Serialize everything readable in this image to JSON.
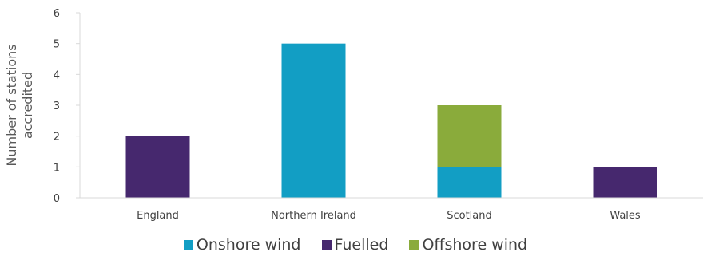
{
  "chart_data": {
    "type": "bar",
    "stacked": true,
    "title": "",
    "xlabel": "",
    "ylabel": "Number of stations accredited",
    "ylim": [
      0,
      6
    ],
    "yticks": [
      0,
      1,
      2,
      3,
      4,
      5,
      6
    ],
    "grid": false,
    "legend_position": "bottom",
    "categories": [
      "England",
      "Northern Ireland",
      "Scotland",
      "Wales"
    ],
    "series": [
      {
        "name": "Onshore wind",
        "color": "#129ec4",
        "values": [
          0,
          5,
          1,
          0
        ]
      },
      {
        "name": "Fuelled",
        "color": "#46286e",
        "values": [
          2,
          0,
          0,
          1
        ]
      },
      {
        "name": "Offshore wind",
        "color": "#8aab3b",
        "values": [
          0,
          0,
          2,
          0
        ]
      }
    ]
  }
}
